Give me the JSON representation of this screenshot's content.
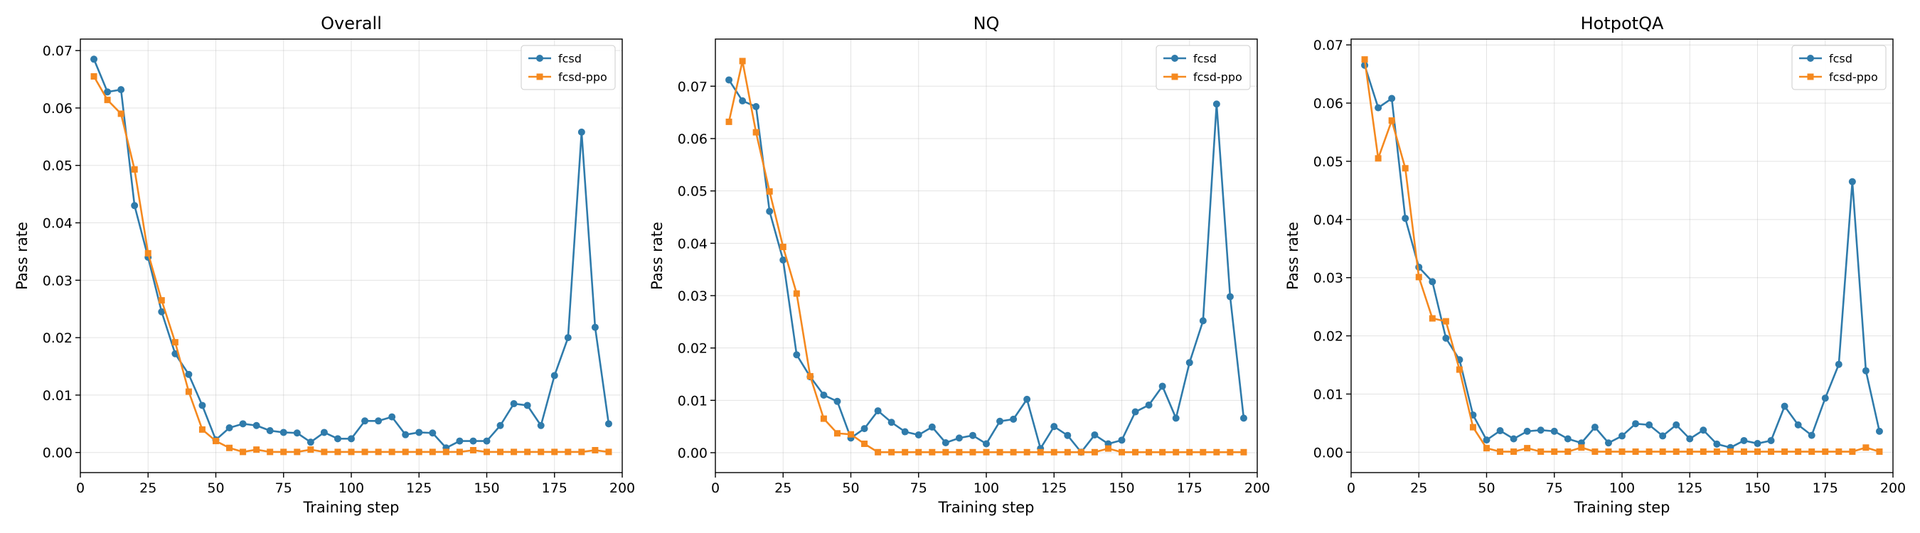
{
  "colors": {
    "fcsd": "#2f7bab",
    "fcsd-ppo": "#f5891f"
  },
  "chart_data": [
    {
      "type": "line",
      "title": "Overall",
      "xlabel": "Training step",
      "ylabel": "Pass rate",
      "xlim": [
        0,
        200
      ],
      "ylim": [
        -0.0035,
        0.072
      ],
      "xticks": [
        0,
        25,
        50,
        75,
        100,
        125,
        150,
        175,
        200
      ],
      "yticks": [
        0.0,
        0.01,
        0.02,
        0.03,
        0.04,
        0.05,
        0.06,
        0.07
      ],
      "ytick_labels": [
        "0.00",
        "0.01",
        "0.02",
        "0.03",
        "0.04",
        "0.05",
        "0.06",
        "0.07"
      ],
      "grid": true,
      "legend_position": "upper right",
      "x": [
        5,
        10,
        15,
        20,
        25,
        30,
        35,
        40,
        45,
        50,
        55,
        60,
        65,
        70,
        75,
        80,
        85,
        90,
        95,
        100,
        105,
        110,
        115,
        120,
        125,
        130,
        135,
        140,
        145,
        150,
        155,
        160,
        165,
        170,
        175,
        180,
        185,
        190,
        195
      ],
      "series": [
        {
          "name": "fcsd",
          "marker": "circle",
          "values": [
            0.0685,
            0.0628,
            0.0632,
            0.043,
            0.034,
            0.0245,
            0.0172,
            0.0136,
            0.0082,
            0.0022,
            0.0043,
            0.005,
            0.0047,
            0.0038,
            0.0035,
            0.0034,
            0.0018,
            0.0035,
            0.0024,
            0.0024,
            0.0055,
            0.0055,
            0.0062,
            0.0031,
            0.0035,
            0.0034,
            0.0008,
            0.002,
            0.002,
            0.002,
            0.0047,
            0.0085,
            0.0082,
            0.0047,
            0.0134,
            0.02,
            0.0558,
            0.0218,
            0.005
          ]
        },
        {
          "name": "fcsd-ppo",
          "marker": "square",
          "values": [
            0.0655,
            0.0614,
            0.059,
            0.0493,
            0.0347,
            0.0265,
            0.0192,
            0.0106,
            0.004,
            0.002,
            0.0008,
            0.0001,
            0.0005,
            0.0001,
            0.0001,
            0.0001,
            0.0005,
            0.0001,
            0.0001,
            0.0001,
            0.0001,
            0.0001,
            0.0001,
            0.0001,
            0.0001,
            0.0001,
            0.0001,
            0.0001,
            0.0004,
            0.0001,
            0.0001,
            0.0001,
            0.0001,
            0.0001,
            0.0001,
            0.0001,
            0.0001,
            0.0004,
            0.0001
          ]
        }
      ]
    },
    {
      "type": "line",
      "title": "NQ",
      "xlabel": "Training step",
      "ylabel": "Pass rate",
      "xlim": [
        0,
        200
      ],
      "ylim": [
        -0.0038,
        0.079
      ],
      "xticks": [
        0,
        25,
        50,
        75,
        100,
        125,
        150,
        175,
        200
      ],
      "yticks": [
        0.0,
        0.01,
        0.02,
        0.03,
        0.04,
        0.05,
        0.06,
        0.07
      ],
      "ytick_labels": [
        "0.00",
        "0.01",
        "0.02",
        "0.03",
        "0.04",
        "0.05",
        "0.06",
        "0.07"
      ],
      "grid": true,
      "legend_position": "upper right",
      "x": [
        5,
        10,
        15,
        20,
        25,
        30,
        35,
        40,
        45,
        50,
        55,
        60,
        65,
        70,
        75,
        80,
        85,
        90,
        95,
        100,
        105,
        110,
        115,
        120,
        125,
        130,
        135,
        140,
        145,
        150,
        155,
        160,
        165,
        170,
        175,
        180,
        185,
        190,
        195
      ],
      "series": [
        {
          "name": "fcsd",
          "marker": "circle",
          "values": [
            0.0712,
            0.0672,
            0.0661,
            0.0461,
            0.0368,
            0.0187,
            0.0145,
            0.011,
            0.0098,
            0.0028,
            0.0046,
            0.008,
            0.0058,
            0.004,
            0.0034,
            0.0049,
            0.0019,
            0.0028,
            0.0033,
            0.0017,
            0.006,
            0.0064,
            0.0102,
            0.0008,
            0.005,
            0.0033,
            0.0001,
            0.0034,
            0.0017,
            0.0024,
            0.0078,
            0.0091,
            0.0127,
            0.0066,
            0.0172,
            0.0252,
            0.0666,
            0.0298,
            0.0066
          ]
        },
        {
          "name": "fcsd-ppo",
          "marker": "square",
          "values": [
            0.0632,
            0.0748,
            0.0612,
            0.0499,
            0.0393,
            0.0304,
            0.0146,
            0.0065,
            0.0037,
            0.0035,
            0.0017,
            0.0001,
            0.0001,
            0.0001,
            0.0001,
            0.0001,
            0.0001,
            0.0001,
            0.0001,
            0.0001,
            0.0001,
            0.0001,
            0.0001,
            0.0001,
            0.0001,
            0.0001,
            0.0001,
            0.0001,
            0.0008,
            0.0001,
            0.0001,
            0.0001,
            0.0001,
            0.0001,
            0.0001,
            0.0001,
            0.0001,
            0.0001,
            0.0001
          ]
        }
      ]
    },
    {
      "type": "line",
      "title": "HotpotQA",
      "xlabel": "Training step",
      "ylabel": "Pass rate",
      "xlim": [
        0,
        200
      ],
      "ylim": [
        -0.0035,
        0.071
      ],
      "xticks": [
        0,
        25,
        50,
        75,
        100,
        125,
        150,
        175,
        200
      ],
      "yticks": [
        0.0,
        0.01,
        0.02,
        0.03,
        0.04,
        0.05,
        0.06,
        0.07
      ],
      "ytick_labels": [
        "0.00",
        "0.01",
        "0.02",
        "0.03",
        "0.04",
        "0.05",
        "0.06",
        "0.07"
      ],
      "grid": true,
      "legend_position": "upper right",
      "x": [
        5,
        10,
        15,
        20,
        25,
        30,
        35,
        40,
        45,
        50,
        55,
        60,
        65,
        70,
        75,
        80,
        85,
        90,
        95,
        100,
        105,
        110,
        115,
        120,
        125,
        130,
        135,
        140,
        145,
        150,
        155,
        160,
        165,
        170,
        175,
        180,
        185,
        190,
        195
      ],
      "series": [
        {
          "name": "fcsd",
          "marker": "circle",
          "values": [
            0.0665,
            0.0592,
            0.0608,
            0.0402,
            0.0318,
            0.0293,
            0.0196,
            0.0159,
            0.0064,
            0.0021,
            0.0037,
            0.0023,
            0.0036,
            0.0038,
            0.0036,
            0.0023,
            0.0016,
            0.0043,
            0.0016,
            0.0028,
            0.0049,
            0.0047,
            0.0028,
            0.0047,
            0.0023,
            0.0038,
            0.0014,
            0.0008,
            0.002,
            0.0015,
            0.002,
            0.0079,
            0.0047,
            0.0029,
            0.0093,
            0.0151,
            0.0465,
            0.014,
            0.0036
          ]
        },
        {
          "name": "fcsd-ppo",
          "marker": "square",
          "values": [
            0.0675,
            0.0505,
            0.057,
            0.0488,
            0.0301,
            0.023,
            0.0225,
            0.0142,
            0.0043,
            0.0007,
            0.0001,
            0.0001,
            0.0007,
            0.0001,
            0.0001,
            0.0001,
            0.0008,
            0.0001,
            0.0001,
            0.0001,
            0.0001,
            0.0001,
            0.0001,
            0.0001,
            0.0001,
            0.0001,
            0.0001,
            0.0001,
            0.0001,
            0.0001,
            0.0001,
            0.0001,
            0.0001,
            0.0001,
            0.0001,
            0.0001,
            0.0001,
            0.0008,
            0.0001
          ]
        }
      ]
    }
  ]
}
